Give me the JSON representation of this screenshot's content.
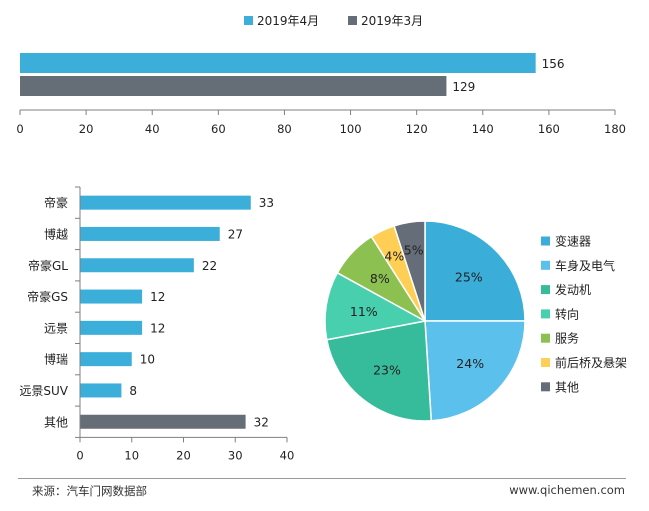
{
  "colors": {
    "blue": "#3BAFDA",
    "gray": "#656E77",
    "axis": "#7f7f7f"
  },
  "chart_data": [
    {
      "type": "bar",
      "orientation": "horizontal",
      "series": [
        {
          "name": "2019年4月",
          "values": [
            156
          ],
          "color": "#3BAFDA"
        },
        {
          "name": "2019年3月",
          "values": [
            129
          ],
          "color": "#656E77"
        }
      ],
      "xlim": [
        0,
        180
      ],
      "xticks": [
        "0",
        "20",
        "40",
        "60",
        "80",
        "100",
        "120",
        "140",
        "160",
        "180"
      ],
      "legend": "top"
    },
    {
      "type": "bar",
      "orientation": "horizontal",
      "categories": [
        "帝豪",
        "博越",
        "帝豪GL",
        "帝豪GS",
        "远景",
        "博瑞",
        "远景SUV",
        "其他"
      ],
      "values": [
        33,
        27,
        22,
        12,
        12,
        10,
        8,
        32
      ],
      "bar_colors": [
        "#3BAFDA",
        "#3BAFDA",
        "#3BAFDA",
        "#3BAFDA",
        "#3BAFDA",
        "#3BAFDA",
        "#3BAFDA",
        "#656E77"
      ],
      "xlim": [
        0,
        40
      ],
      "xticks": [
        "0",
        "10",
        "20",
        "30",
        "40"
      ]
    },
    {
      "type": "pie",
      "slices": [
        {
          "label": "变速器",
          "value": 25,
          "text": "25%",
          "color": "#3AADD9"
        },
        {
          "label": "车身及电气",
          "value": 24,
          "text": "24%",
          "color": "#5BC0EB"
        },
        {
          "label": "发动机",
          "value": 23,
          "text": "23%",
          "color": "#37BC9B"
        },
        {
          "label": "转向",
          "value": 11,
          "text": "11%",
          "color": "#48CFAD"
        },
        {
          "label": "服务",
          "value": 8,
          "text": "8%",
          "color": "#8CC152"
        },
        {
          "label": "前后桥及悬架",
          "value": 4,
          "text": "4%",
          "color": "#FFCE54"
        },
        {
          "label": "其他",
          "value": 5,
          "text": "5%",
          "color": "#656D78"
        }
      ],
      "legend": "right"
    }
  ],
  "footer": {
    "source": "来源：汽车门网数据部",
    "website": "www.qichemen.com"
  }
}
